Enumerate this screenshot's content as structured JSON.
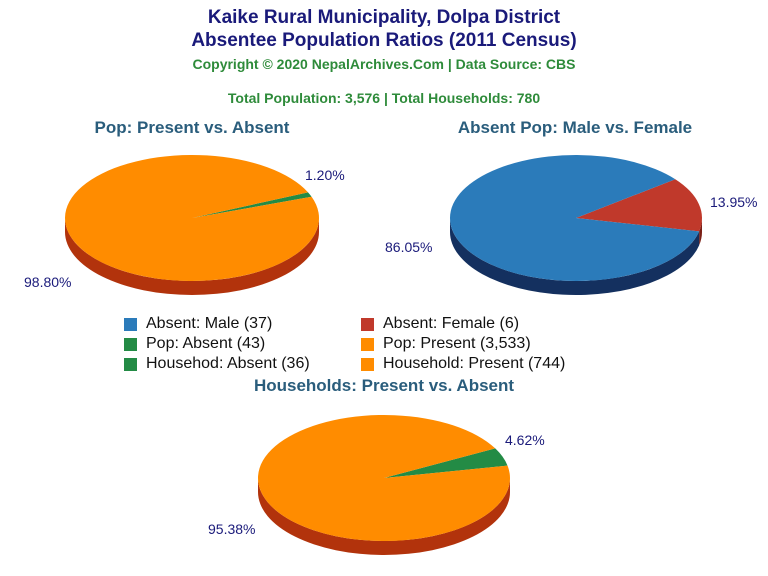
{
  "header": {
    "title_line1": "Kaike Rural Municipality, Dolpa District",
    "title_line2": "Absentee Population Ratios (2011 Census)",
    "copyright": "Copyright © 2020 NepalArchives.Com | Data Source: CBS",
    "totals": "Total Population: 3,576 | Total Households: 780"
  },
  "legend": [
    {
      "label": "Absent: Male (37)",
      "color": "#2b7bba"
    },
    {
      "label": "Absent: Female (6)",
      "color": "#c0392b"
    },
    {
      "label": "Pop: Absent (43)",
      "color": "#238b45"
    },
    {
      "label": "Pop: Present (3,533)",
      "color": "#ff8c00"
    },
    {
      "label": "Househod: Absent (36)",
      "color": "#238b45"
    },
    {
      "label": "Household: Present (744)",
      "color": "#ff8c00"
    }
  ],
  "chart_data": [
    {
      "type": "pie",
      "title": "Pop: Present vs. Absent",
      "slices": [
        {
          "name": "Pop: Absent",
          "value": 43,
          "percent_label": "1.20%",
          "color": "#238b45"
        },
        {
          "name": "Pop: Present",
          "value": 3533,
          "percent_label": "98.80%",
          "color": "#ff8c00"
        }
      ]
    },
    {
      "type": "pie",
      "title": "Absent Pop: Male vs. Female",
      "slices": [
        {
          "name": "Absent: Female",
          "value": 6,
          "percent_label": "13.95%",
          "color": "#c0392b"
        },
        {
          "name": "Absent: Male",
          "value": 37,
          "percent_label": "86.05%",
          "color": "#2b7bba"
        }
      ]
    },
    {
      "type": "pie",
      "title": "Households: Present vs. Absent",
      "slices": [
        {
          "name": "Househod: Absent",
          "value": 36,
          "percent_label": "4.62%",
          "color": "#238b45"
        },
        {
          "name": "Household: Present",
          "value": 744,
          "percent_label": "95.38%",
          "color": "#ff8c00"
        }
      ]
    }
  ]
}
